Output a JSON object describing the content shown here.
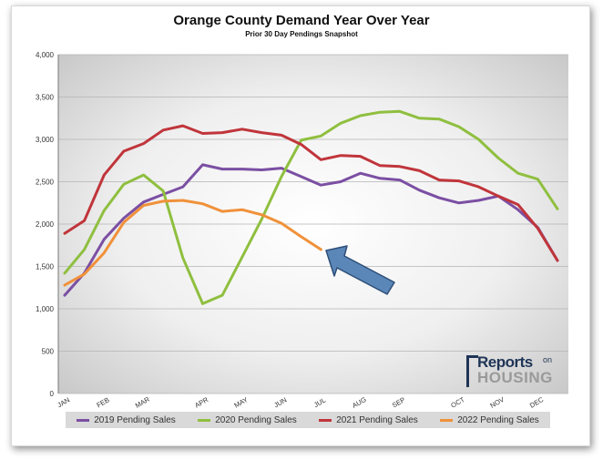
{
  "chart_data": {
    "type": "line",
    "title": "Orange County Demand Year Over Year",
    "subtitle": "Prior 30 Day Pendings Snapshot",
    "ylim": [
      0,
      4000
    ],
    "yticks": [
      "0",
      "500",
      "1,000",
      "1,500",
      "2,000",
      "2,500",
      "3,000",
      "3,500",
      "4,000"
    ],
    "ytick_values": [
      0,
      500,
      1000,
      1500,
      2000,
      2500,
      3000,
      3500,
      4000
    ],
    "month_labels": [
      "JAN",
      "FEB",
      "MAR",
      "APR",
      "MAY",
      "JUN",
      "JUL",
      "AUG",
      "SEP",
      "OCT",
      "NOV",
      "DEC"
    ],
    "month_positions": [
      0,
      2,
      4,
      7,
      9,
      11,
      13,
      15,
      17,
      20,
      22,
      24
    ],
    "x_count": 26,
    "grid": true,
    "legend_position": "bottom",
    "series": [
      {
        "name": "2019 Pending Sales",
        "color": "#7b4fa3",
        "values": [
          1160,
          1420,
          1820,
          2070,
          2260,
          2350,
          2440,
          2700,
          2650,
          2650,
          2640,
          2660,
          2560,
          2460,
          2500,
          2600,
          2540,
          2520,
          2400,
          2310,
          2250,
          2280,
          2330,
          2170,
          1960,
          1570
        ]
      },
      {
        "name": "2020 Pending Sales",
        "color": "#8fbf3f",
        "values": [
          1420,
          1700,
          2160,
          2470,
          2580,
          2390,
          1600,
          1060,
          1160,
          1610,
          2060,
          2560,
          2990,
          3040,
          3190,
          3280,
          3320,
          3330,
          3250,
          3240,
          3150,
          3000,
          2780,
          2600,
          2530,
          2180
        ]
      },
      {
        "name": "2021 Pending Sales",
        "color": "#c0353b",
        "values": [
          1890,
          2040,
          2580,
          2860,
          2950,
          3110,
          3160,
          3070,
          3080,
          3120,
          3080,
          3050,
          2940,
          2760,
          2810,
          2800,
          2690,
          2680,
          2630,
          2520,
          2510,
          2440,
          2330,
          2230,
          1950,
          1570
        ]
      },
      {
        "name": "2022 Pending Sales",
        "color": "#f0913a",
        "values": [
          1280,
          1410,
          1660,
          2020,
          2220,
          2270,
          2280,
          2240,
          2150,
          2170,
          2110,
          2010,
          1850,
          1700
        ]
      }
    ]
  },
  "logo": {
    "reports": "Reports",
    "on": "on",
    "housing": "HOUSING"
  }
}
